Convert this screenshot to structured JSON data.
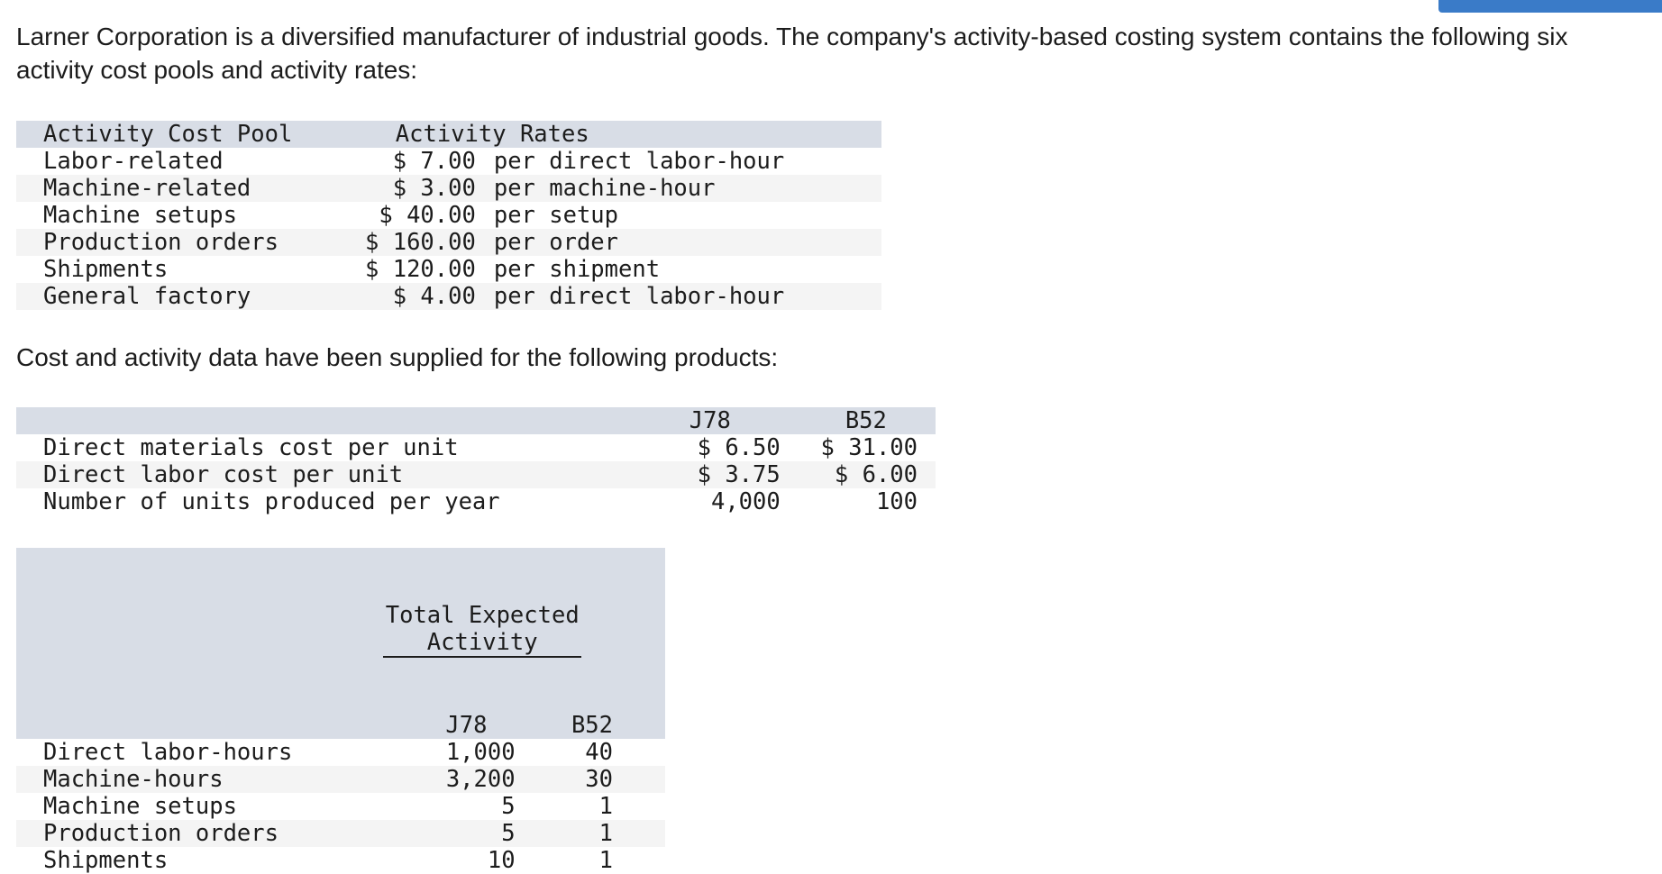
{
  "intro_text": "Larner Corporation is a diversified manufacturer of industrial goods. The company's activity-based costing system contains the following six activity cost pools and activity rates:",
  "rates_table": {
    "header_pool": "Activity Cost Pool",
    "header_rates": "Activity Rates",
    "rows": [
      {
        "pool": "Labor-related",
        "rate": "$ 7.00",
        "unit": "per direct labor-hour"
      },
      {
        "pool": "Machine-related",
        "rate": "$ 3.00",
        "unit": "per machine-hour"
      },
      {
        "pool": "Machine setups",
        "rate": "$ 40.00",
        "unit": "per setup"
      },
      {
        "pool": "Production orders",
        "rate": "$ 160.00",
        "unit": "per order"
      },
      {
        "pool": "Shipments",
        "rate": "$ 120.00",
        "unit": "per shipment"
      },
      {
        "pool": "General factory",
        "rate": "$ 4.00",
        "unit": "per direct labor-hour"
      }
    ]
  },
  "product_intro": "Cost and activity data have been supplied for the following products:",
  "product_table": {
    "col_j78": "J78",
    "col_b52": "B52",
    "rows": [
      {
        "label": "Direct materials cost per unit",
        "j78": "$ 6.50",
        "b52": "$ 31.00"
      },
      {
        "label": "Direct labor cost per unit",
        "j78": "$ 3.75",
        "b52": "$ 6.00"
      },
      {
        "label": "Number of units produced per year",
        "j78": "4,000",
        "b52": "100"
      }
    ]
  },
  "activity_table": {
    "group_header": "Total Expected Activity",
    "col_j78": "J78",
    "col_b52": "B52",
    "rows": [
      {
        "label": "Direct labor-hours",
        "j78": "1,000",
        "b52": "40"
      },
      {
        "label": "Machine-hours",
        "j78": "3,200",
        "b52": "30"
      },
      {
        "label": "Machine setups",
        "j78": "5",
        "b52": "1"
      },
      {
        "label": "Production orders",
        "j78": "5",
        "b52": "1"
      },
      {
        "label": "Shipments",
        "j78": "10",
        "b52": "1"
      }
    ]
  }
}
